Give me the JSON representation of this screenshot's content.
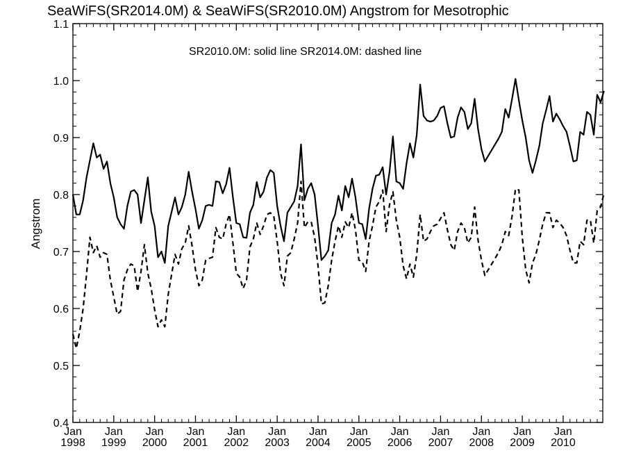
{
  "chart_data": {
    "type": "line",
    "title": "SeaWiFS(SR2014.0M) & SeaWiFS(SR2010.0M)  Angstrom for Mesotrophic",
    "annotation": "SR2010.0M: solid line   SR2014.0M: dashed line",
    "xlabel": "",
    "ylabel": "Angstrom",
    "xlim": [
      1998.0,
      2010.97
    ],
    "ylim": [
      0.4,
      1.1
    ],
    "yticks": [
      "0.4",
      "0.5",
      "0.6",
      "0.7",
      "0.8",
      "0.9",
      "1.0",
      "1.1"
    ],
    "xticks": [
      {
        "month": "Jan",
        "year": "1998"
      },
      {
        "month": "Jan",
        "year": "1999"
      },
      {
        "month": "Jan",
        "year": "2000"
      },
      {
        "month": "Jan",
        "year": "2001"
      },
      {
        "month": "Jan",
        "year": "2002"
      },
      {
        "month": "Jan",
        "year": "2003"
      },
      {
        "month": "Jan",
        "year": "2004"
      },
      {
        "month": "Jan",
        "year": "2005"
      },
      {
        "month": "Jan",
        "year": "2006"
      },
      {
        "month": "Jan",
        "year": "2007"
      },
      {
        "month": "Jan",
        "year": "2008"
      },
      {
        "month": "Jan",
        "year": "2009"
      },
      {
        "month": "Jan",
        "year": "2010"
      }
    ],
    "grid": false,
    "legend": "none",
    "series": [
      {
        "line_style": "solid",
        "x_start": 1998.0,
        "x_step_months": 1,
        "values": [
          0.8,
          0.765,
          0.765,
          0.79,
          0.83,
          0.86,
          0.89,
          0.865,
          0.87,
          0.845,
          0.858,
          0.82,
          0.795,
          0.76,
          0.748,
          0.74,
          0.78,
          0.805,
          0.808,
          0.8,
          0.75,
          0.79,
          0.83,
          0.77,
          0.745,
          0.69,
          0.7,
          0.68,
          0.745,
          0.77,
          0.795,
          0.765,
          0.778,
          0.8,
          0.84,
          0.805,
          0.775,
          0.74,
          0.755,
          0.78,
          0.782,
          0.78,
          0.823,
          0.822,
          0.802,
          0.818,
          0.847,
          0.795,
          0.75,
          0.748,
          0.725,
          0.724,
          0.768,
          0.782,
          0.822,
          0.795,
          0.805,
          0.83,
          0.843,
          0.838,
          0.78,
          0.745,
          0.718,
          0.768,
          0.778,
          0.788,
          0.815,
          0.888,
          0.79,
          0.81,
          0.82,
          0.8,
          0.745,
          0.685,
          0.692,
          0.702,
          0.75,
          0.765,
          0.798,
          0.772,
          0.815,
          0.795,
          0.828,
          0.795,
          0.75,
          0.748,
          0.722,
          0.775,
          0.81,
          0.833,
          0.835,
          0.848,
          0.8,
          0.84,
          0.902,
          0.823,
          0.82,
          0.81,
          0.855,
          0.89,
          0.865,
          0.905,
          0.993,
          0.938,
          0.93,
          0.928,
          0.93,
          0.938,
          0.952,
          0.955,
          0.925,
          0.9,
          0.902,
          0.935,
          0.953,
          0.945,
          0.915,
          0.925,
          0.968,
          0.915,
          0.88,
          0.858,
          0.868,
          0.878,
          0.888,
          0.898,
          0.91,
          0.95,
          0.935,
          0.968,
          1.003,
          0.965,
          0.93,
          0.9,
          0.86,
          0.838,
          0.86,
          0.885,
          0.925,
          0.948,
          0.973,
          0.928,
          0.942,
          0.932,
          0.92,
          0.91,
          0.885,
          0.858,
          0.86,
          0.91,
          0.905,
          0.945,
          0.94,
          0.905,
          0.975,
          0.962,
          0.982
        ]
      },
      {
        "line_style": "dashed",
        "x_start": 1998.0,
        "x_step_months": 1,
        "values": [
          0.555,
          0.53,
          0.56,
          0.6,
          0.66,
          0.725,
          0.698,
          0.71,
          0.69,
          0.698,
          0.695,
          0.65,
          0.62,
          0.59,
          0.595,
          0.65,
          0.668,
          0.678,
          0.675,
          0.63,
          0.665,
          0.712,
          0.662,
          0.635,
          0.598,
          0.568,
          0.58,
          0.568,
          0.625,
          0.66,
          0.695,
          0.678,
          0.705,
          0.715,
          0.745,
          0.71,
          0.668,
          0.64,
          0.65,
          0.685,
          0.688,
          0.69,
          0.742,
          0.725,
          0.722,
          0.748,
          0.765,
          0.715,
          0.662,
          0.655,
          0.635,
          0.65,
          0.708,
          0.722,
          0.75,
          0.73,
          0.745,
          0.765,
          0.768,
          0.762,
          0.718,
          0.662,
          0.64,
          0.692,
          0.698,
          0.722,
          0.75,
          0.823,
          0.742,
          0.752,
          0.752,
          0.725,
          0.675,
          0.608,
          0.61,
          0.64,
          0.685,
          0.718,
          0.745,
          0.725,
          0.752,
          0.742,
          0.768,
          0.738,
          0.685,
          0.682,
          0.665,
          0.718,
          0.745,
          0.778,
          0.788,
          0.808,
          0.735,
          0.782,
          0.805,
          0.755,
          0.725,
          0.675,
          0.652,
          0.678,
          0.655,
          0.695,
          0.765,
          0.718,
          0.722,
          0.735,
          0.745,
          0.748,
          0.758,
          0.768,
          0.738,
          0.712,
          0.702,
          0.735,
          0.75,
          0.742,
          0.715,
          0.725,
          0.778,
          0.72,
          0.685,
          0.658,
          0.668,
          0.678,
          0.688,
          0.698,
          0.712,
          0.735,
          0.728,
          0.762,
          0.81,
          0.808,
          0.725,
          0.668,
          0.645,
          0.68,
          0.695,
          0.72,
          0.748,
          0.768,
          0.768,
          0.742,
          0.755,
          0.75,
          0.742,
          0.728,
          0.702,
          0.68,
          0.68,
          0.718,
          0.712,
          0.755,
          0.755,
          0.715,
          0.772,
          0.778,
          0.802
        ]
      }
    ]
  }
}
